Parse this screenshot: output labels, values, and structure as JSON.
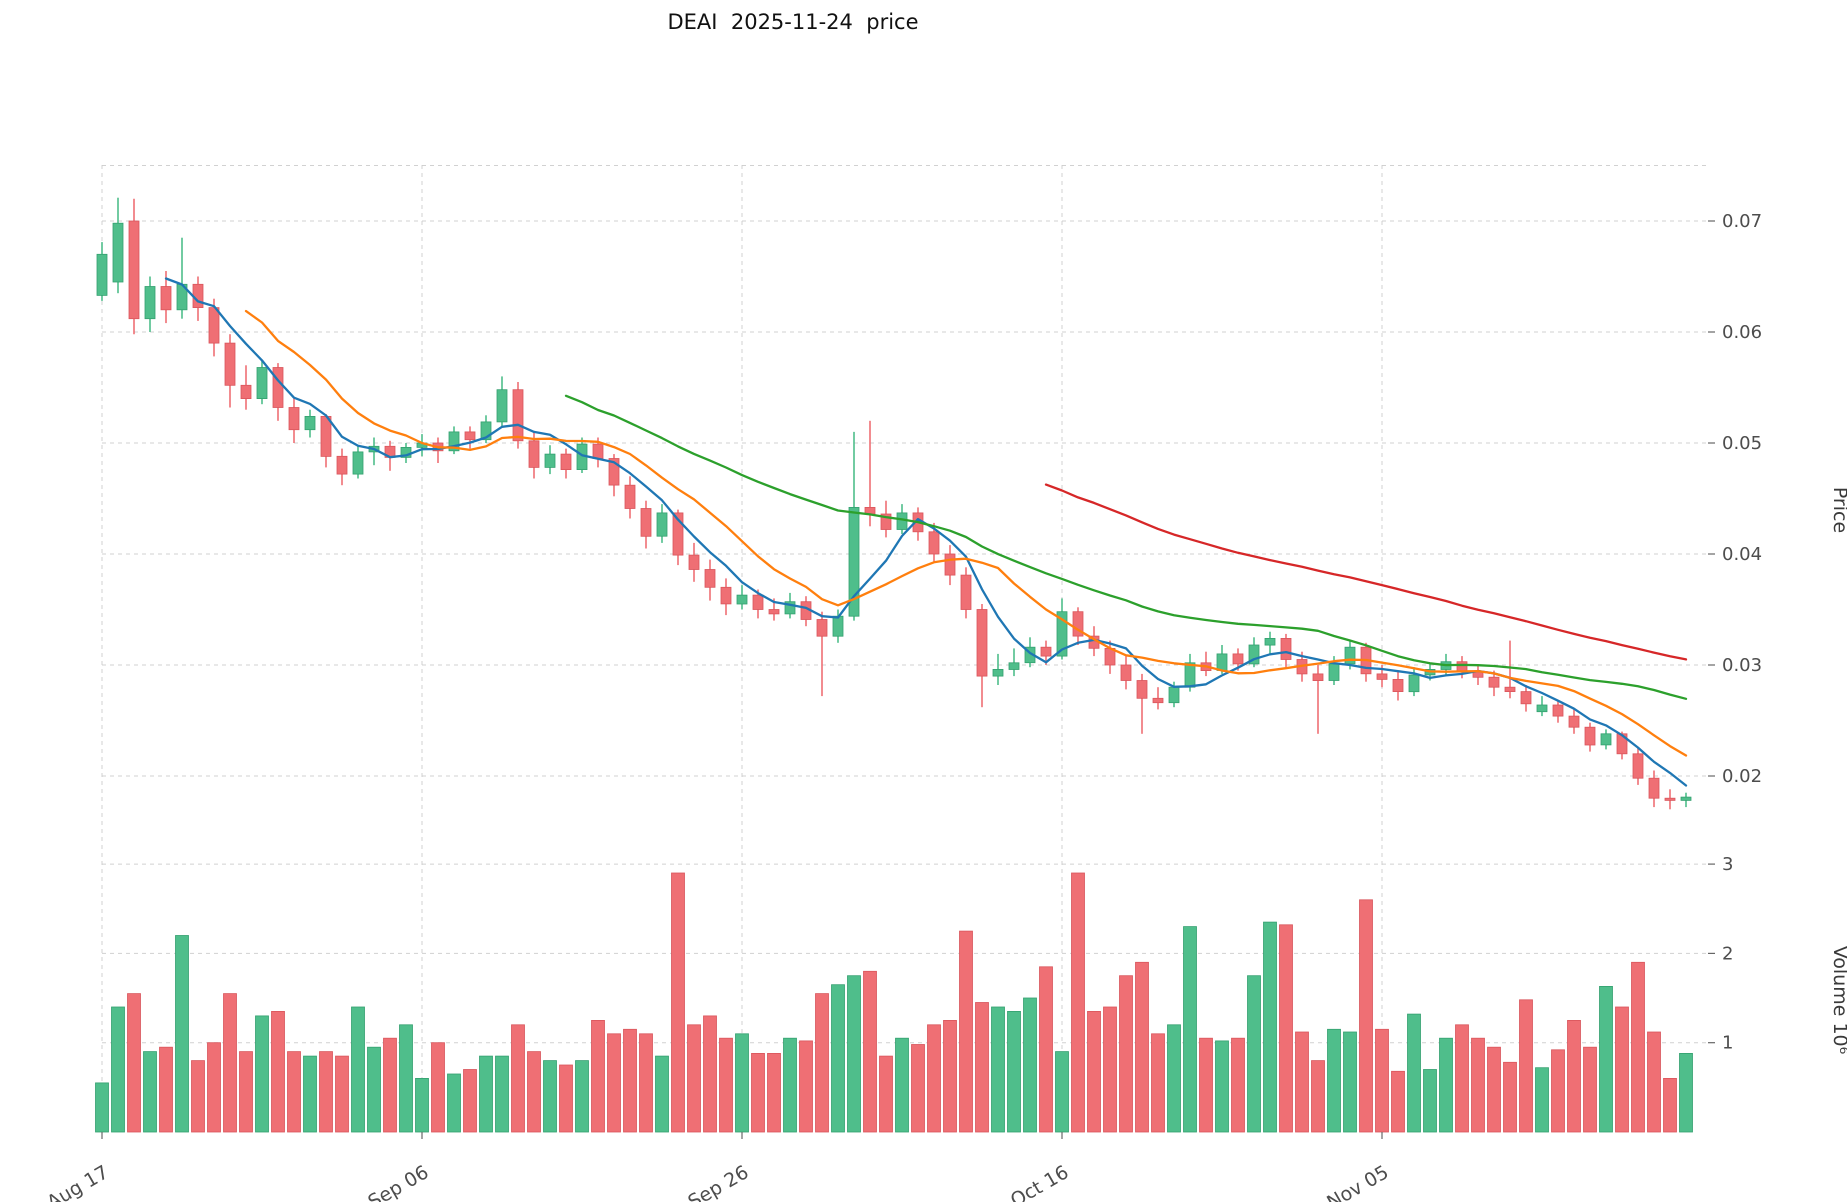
{
  "title": "DEAI  2025-11-24  price",
  "axes": {
    "price_label": "Price",
    "volume_label": "Volume 10⁶",
    "price_ticks": [
      0.07,
      0.06,
      0.05,
      0.04,
      0.03,
      0.02
    ],
    "volume_ticks": [
      3,
      2,
      1
    ],
    "x_ticks": [
      "Aug 17",
      "Sep 06",
      "Sep 26",
      "Oct 16",
      "Nov 05"
    ],
    "x_tick_days": [
      0,
      20,
      40,
      60,
      80
    ]
  },
  "colors": {
    "up": "#4fbe8b",
    "down": "#ef6f74",
    "up_edge": "#33a06f",
    "down_edge": "#d9565c",
    "grid": "#c9c9c9",
    "tick_text": "#4d4d4d"
  },
  "chart_data": {
    "type": "candlestick+volume",
    "title": "DEAI  2025-11-24  price",
    "ylabel": "Price",
    "ylabel2": "Volume 10⁶",
    "grid": true,
    "price_ylim": [
      0.015,
      0.075
    ],
    "volume_ylim_millions": [
      0,
      3.3
    ],
    "moving_averages": [
      {
        "window": 5,
        "color": "#1f77b4"
      },
      {
        "window": 10,
        "color": "#ff7f0e"
      },
      {
        "window": 30,
        "color": "#2ca02c"
      },
      {
        "window": 60,
        "color": "#d62728"
      }
    ],
    "dates": [
      "2025-08-17",
      "2025-08-18",
      "2025-08-19",
      "2025-08-20",
      "2025-08-21",
      "2025-08-22",
      "2025-08-23",
      "2025-08-24",
      "2025-08-25",
      "2025-08-26",
      "2025-08-27",
      "2025-08-28",
      "2025-08-29",
      "2025-08-30",
      "2025-08-31",
      "2025-09-01",
      "2025-09-02",
      "2025-09-03",
      "2025-09-04",
      "2025-09-05",
      "2025-09-06",
      "2025-09-07",
      "2025-09-08",
      "2025-09-09",
      "2025-09-10",
      "2025-09-11",
      "2025-09-12",
      "2025-09-13",
      "2025-09-14",
      "2025-09-15",
      "2025-09-16",
      "2025-09-17",
      "2025-09-18",
      "2025-09-19",
      "2025-09-20",
      "2025-09-21",
      "2025-09-22",
      "2025-09-23",
      "2025-09-24",
      "2025-09-25",
      "2025-09-26",
      "2025-09-27",
      "2025-09-28",
      "2025-09-29",
      "2025-09-30",
      "2025-10-01",
      "2025-10-02",
      "2025-10-03",
      "2025-10-04",
      "2025-10-05",
      "2025-10-06",
      "2025-10-07",
      "2025-10-08",
      "2025-10-09",
      "2025-10-10",
      "2025-10-11",
      "2025-10-12",
      "2025-10-13",
      "2025-10-14",
      "2025-10-15",
      "2025-10-16",
      "2025-10-17",
      "2025-10-18",
      "2025-10-19",
      "2025-10-20",
      "2025-10-21",
      "2025-10-22",
      "2025-10-23",
      "2025-10-24",
      "2025-10-25",
      "2025-10-26",
      "2025-10-27",
      "2025-10-28",
      "2025-10-29",
      "2025-10-30",
      "2025-10-31",
      "2025-11-01",
      "2025-11-02",
      "2025-11-03",
      "2025-11-04",
      "2025-11-05",
      "2025-11-06",
      "2025-11-07",
      "2025-11-08",
      "2025-11-09",
      "2025-11-10",
      "2025-11-11",
      "2025-11-12",
      "2025-11-13",
      "2025-11-14",
      "2025-11-15",
      "2025-11-16",
      "2025-11-17",
      "2025-11-18",
      "2025-11-19",
      "2025-11-20",
      "2025-11-21",
      "2025-11-22",
      "2025-11-23",
      "2025-11-24"
    ],
    "open": [
      0.0633,
      0.0645,
      0.07,
      0.0612,
      0.0641,
      0.062,
      0.0643,
      0.0622,
      0.059,
      0.0552,
      0.054,
      0.0568,
      0.0532,
      0.0512,
      0.0524,
      0.0488,
      0.0472,
      0.0492,
      0.0497,
      0.0487,
      0.0496,
      0.05,
      0.0493,
      0.051,
      0.0503,
      0.0519,
      0.0548,
      0.0502,
      0.0478,
      0.049,
      0.0476,
      0.0499,
      0.0486,
      0.0462,
      0.0441,
      0.0416,
      0.0437,
      0.0399,
      0.0386,
      0.037,
      0.0355,
      0.0363,
      0.035,
      0.0346,
      0.0357,
      0.0341,
      0.0326,
      0.0344,
      0.0442,
      0.0436,
      0.0422,
      0.0437,
      0.042,
      0.04,
      0.0381,
      0.035,
      0.029,
      0.0296,
      0.0302,
      0.0316,
      0.0308,
      0.0348,
      0.0326,
      0.0315,
      0.03,
      0.0286,
      0.027,
      0.0266,
      0.028,
      0.0302,
      0.0295,
      0.031,
      0.0301,
      0.0318,
      0.0324,
      0.0305,
      0.0292,
      0.0286,
      0.0301,
      0.0316,
      0.0292,
      0.0287,
      0.0276,
      0.0291,
      0.0296,
      0.0303,
      0.0294,
      0.0289,
      0.028,
      0.0276,
      0.0258,
      0.0264,
      0.0254,
      0.0244,
      0.0228,
      0.0238,
      0.022,
      0.0198,
      0.018,
      0.0178
    ],
    "high": [
      0.0681,
      0.0721,
      0.072,
      0.065,
      0.0655,
      0.0685,
      0.065,
      0.063,
      0.0598,
      0.057,
      0.0575,
      0.0572,
      0.054,
      0.053,
      0.0526,
      0.0495,
      0.0498,
      0.0505,
      0.0502,
      0.05,
      0.0508,
      0.0505,
      0.0515,
      0.0515,
      0.0525,
      0.056,
      0.0555,
      0.051,
      0.0498,
      0.0495,
      0.0505,
      0.0505,
      0.049,
      0.047,
      0.0448,
      0.0445,
      0.044,
      0.041,
      0.0395,
      0.0378,
      0.0372,
      0.0368,
      0.036,
      0.0365,
      0.0362,
      0.0348,
      0.035,
      0.051,
      0.052,
      0.0448,
      0.0445,
      0.0442,
      0.0428,
      0.0408,
      0.0388,
      0.0355,
      0.031,
      0.0315,
      0.0325,
      0.0322,
      0.036,
      0.0352,
      0.0335,
      0.0322,
      0.0308,
      0.0292,
      0.028,
      0.0285,
      0.031,
      0.0312,
      0.0318,
      0.0315,
      0.0325,
      0.033,
      0.0328,
      0.0312,
      0.03,
      0.0308,
      0.0322,
      0.032,
      0.03,
      0.0295,
      0.0298,
      0.0302,
      0.031,
      0.0308,
      0.03,
      0.0295,
      0.0322,
      0.0282,
      0.0272,
      0.0268,
      0.026,
      0.0248,
      0.0242,
      0.024,
      0.0225,
      0.0205,
      0.0188,
      0.0185
    ],
    "low": [
      0.0628,
      0.0635,
      0.0598,
      0.06,
      0.0608,
      0.0612,
      0.061,
      0.0578,
      0.0532,
      0.053,
      0.0535,
      0.052,
      0.05,
      0.0505,
      0.0478,
      0.0462,
      0.0468,
      0.048,
      0.0475,
      0.0482,
      0.0488,
      0.0482,
      0.049,
      0.0495,
      0.05,
      0.0515,
      0.0495,
      0.0468,
      0.0472,
      0.0468,
      0.0473,
      0.0478,
      0.0452,
      0.0432,
      0.0405,
      0.041,
      0.039,
      0.0375,
      0.0358,
      0.0345,
      0.035,
      0.0342,
      0.034,
      0.0342,
      0.0335,
      0.0272,
      0.032,
      0.034,
      0.0425,
      0.0415,
      0.0418,
      0.0412,
      0.0392,
      0.0372,
      0.0342,
      0.0262,
      0.0282,
      0.029,
      0.0298,
      0.03,
      0.0305,
      0.0318,
      0.0308,
      0.0292,
      0.0278,
      0.0238,
      0.026,
      0.0262,
      0.0276,
      0.029,
      0.0292,
      0.0295,
      0.0298,
      0.031,
      0.0298,
      0.0285,
      0.0238,
      0.0282,
      0.0296,
      0.0285,
      0.028,
      0.0268,
      0.0272,
      0.0286,
      0.029,
      0.0288,
      0.0282,
      0.0272,
      0.027,
      0.0258,
      0.0254,
      0.0248,
      0.0238,
      0.0222,
      0.0224,
      0.0215,
      0.0192,
      0.0172,
      0.017,
      0.0172
    ],
    "close": [
      0.067,
      0.0698,
      0.0612,
      0.0641,
      0.062,
      0.0643,
      0.0622,
      0.059,
      0.0552,
      0.054,
      0.0568,
      0.0532,
      0.0512,
      0.0524,
      0.0488,
      0.0472,
      0.0492,
      0.0497,
      0.0487,
      0.0496,
      0.05,
      0.0493,
      0.051,
      0.0503,
      0.0519,
      0.0548,
      0.0502,
      0.0478,
      0.049,
      0.0476,
      0.0499,
      0.0486,
      0.0462,
      0.0441,
      0.0416,
      0.0437,
      0.0399,
      0.0386,
      0.037,
      0.0355,
      0.0363,
      0.035,
      0.0346,
      0.0357,
      0.0341,
      0.0326,
      0.0344,
      0.0442,
      0.0436,
      0.0422,
      0.0437,
      0.042,
      0.04,
      0.0381,
      0.035,
      0.029,
      0.0296,
      0.0302,
      0.0316,
      0.0308,
      0.0348,
      0.0326,
      0.0315,
      0.03,
      0.0286,
      0.027,
      0.0266,
      0.028,
      0.0302,
      0.0295,
      0.031,
      0.0301,
      0.0318,
      0.0324,
      0.0305,
      0.0292,
      0.0286,
      0.0301,
      0.0316,
      0.0292,
      0.0287,
      0.0276,
      0.0291,
      0.0296,
      0.0303,
      0.0294,
      0.0289,
      0.028,
      0.0276,
      0.0265,
      0.0264,
      0.0254,
      0.0244,
      0.0228,
      0.0238,
      0.022,
      0.0198,
      0.018,
      0.0178,
      0.0181
    ],
    "volume_millions": [
      0.55,
      1.4,
      1.55,
      0.9,
      0.95,
      2.2,
      0.8,
      1.0,
      1.55,
      0.9,
      1.3,
      1.35,
      0.9,
      0.85,
      0.9,
      0.85,
      1.4,
      0.95,
      1.05,
      1.2,
      0.6,
      1.0,
      0.65,
      0.7,
      0.85,
      0.85,
      1.2,
      0.9,
      0.8,
      0.75,
      0.8,
      1.25,
      1.1,
      1.15,
      1.1,
      0.85,
      2.9,
      1.2,
      1.3,
      1.05,
      1.1,
      0.88,
      0.88,
      1.05,
      1.02,
      1.55,
      1.65,
      1.75,
      1.8,
      0.85,
      1.05,
      0.98,
      1.2,
      1.25,
      2.25,
      1.45,
      1.4,
      1.35,
      1.5,
      1.85,
      0.9,
      2.9,
      1.35,
      1.4,
      1.75,
      1.9,
      1.1,
      1.2,
      2.3,
      1.05,
      1.02,
      1.05,
      1.75,
      2.35,
      2.32,
      1.12,
      0.8,
      1.15,
      1.12,
      2.6,
      1.15,
      0.68,
      1.32,
      0.7,
      1.05,
      1.2,
      1.05,
      0.95,
      0.78,
      1.48,
      0.72,
      0.92,
      1.25,
      0.95,
      1.63,
      1.4,
      1.9,
      1.12,
      0.6,
      0.88
    ]
  }
}
